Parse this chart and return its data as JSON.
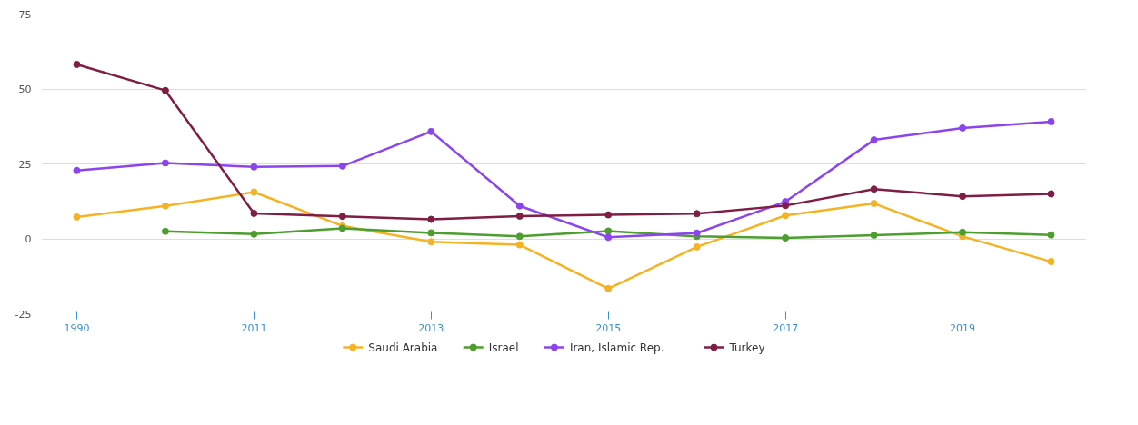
{
  "chart_data": {
    "type": "line",
    "categories": [
      "1990",
      null,
      "2011",
      null,
      "2013",
      null,
      "2015",
      null,
      "2017",
      null,
      "2019",
      null
    ],
    "series": [
      {
        "name": "Saudi Arabia",
        "color": "#f5b324",
        "values": [
          7.3,
          11,
          15.6,
          4.3,
          -1,
          -2,
          -16.6,
          -2.7,
          7.8,
          11.8,
          0.8,
          -7.6
        ]
      },
      {
        "name": "Israel",
        "color": "#4c9e2e",
        "values": [
          null,
          2.5,
          1.6,
          3.5,
          2,
          0.8,
          2.6,
          0.8,
          0.3,
          1.2,
          2.2,
          1.3
        ]
      },
      {
        "name": "Iran, Islamic Rep.",
        "color": "#8b44f0",
        "values": [
          22.8,
          25.3,
          24,
          24.3,
          35.8,
          11,
          0.5,
          1.9,
          12.4,
          33,
          37,
          39.1
        ]
      },
      {
        "name": "Turkey",
        "color": "#7f1d45",
        "values": [
          58.2,
          49.5,
          8.5,
          7.5,
          6.5,
          7.6,
          8,
          8.4,
          11.1,
          16.6,
          14.2,
          15
        ]
      }
    ],
    "ylim": [
      -25,
      75
    ],
    "yticks": [
      -25,
      0,
      25,
      50,
      75
    ],
    "grid": "y",
    "legend": "bottom",
    "marker": "circle",
    "line_style": "solid"
  }
}
